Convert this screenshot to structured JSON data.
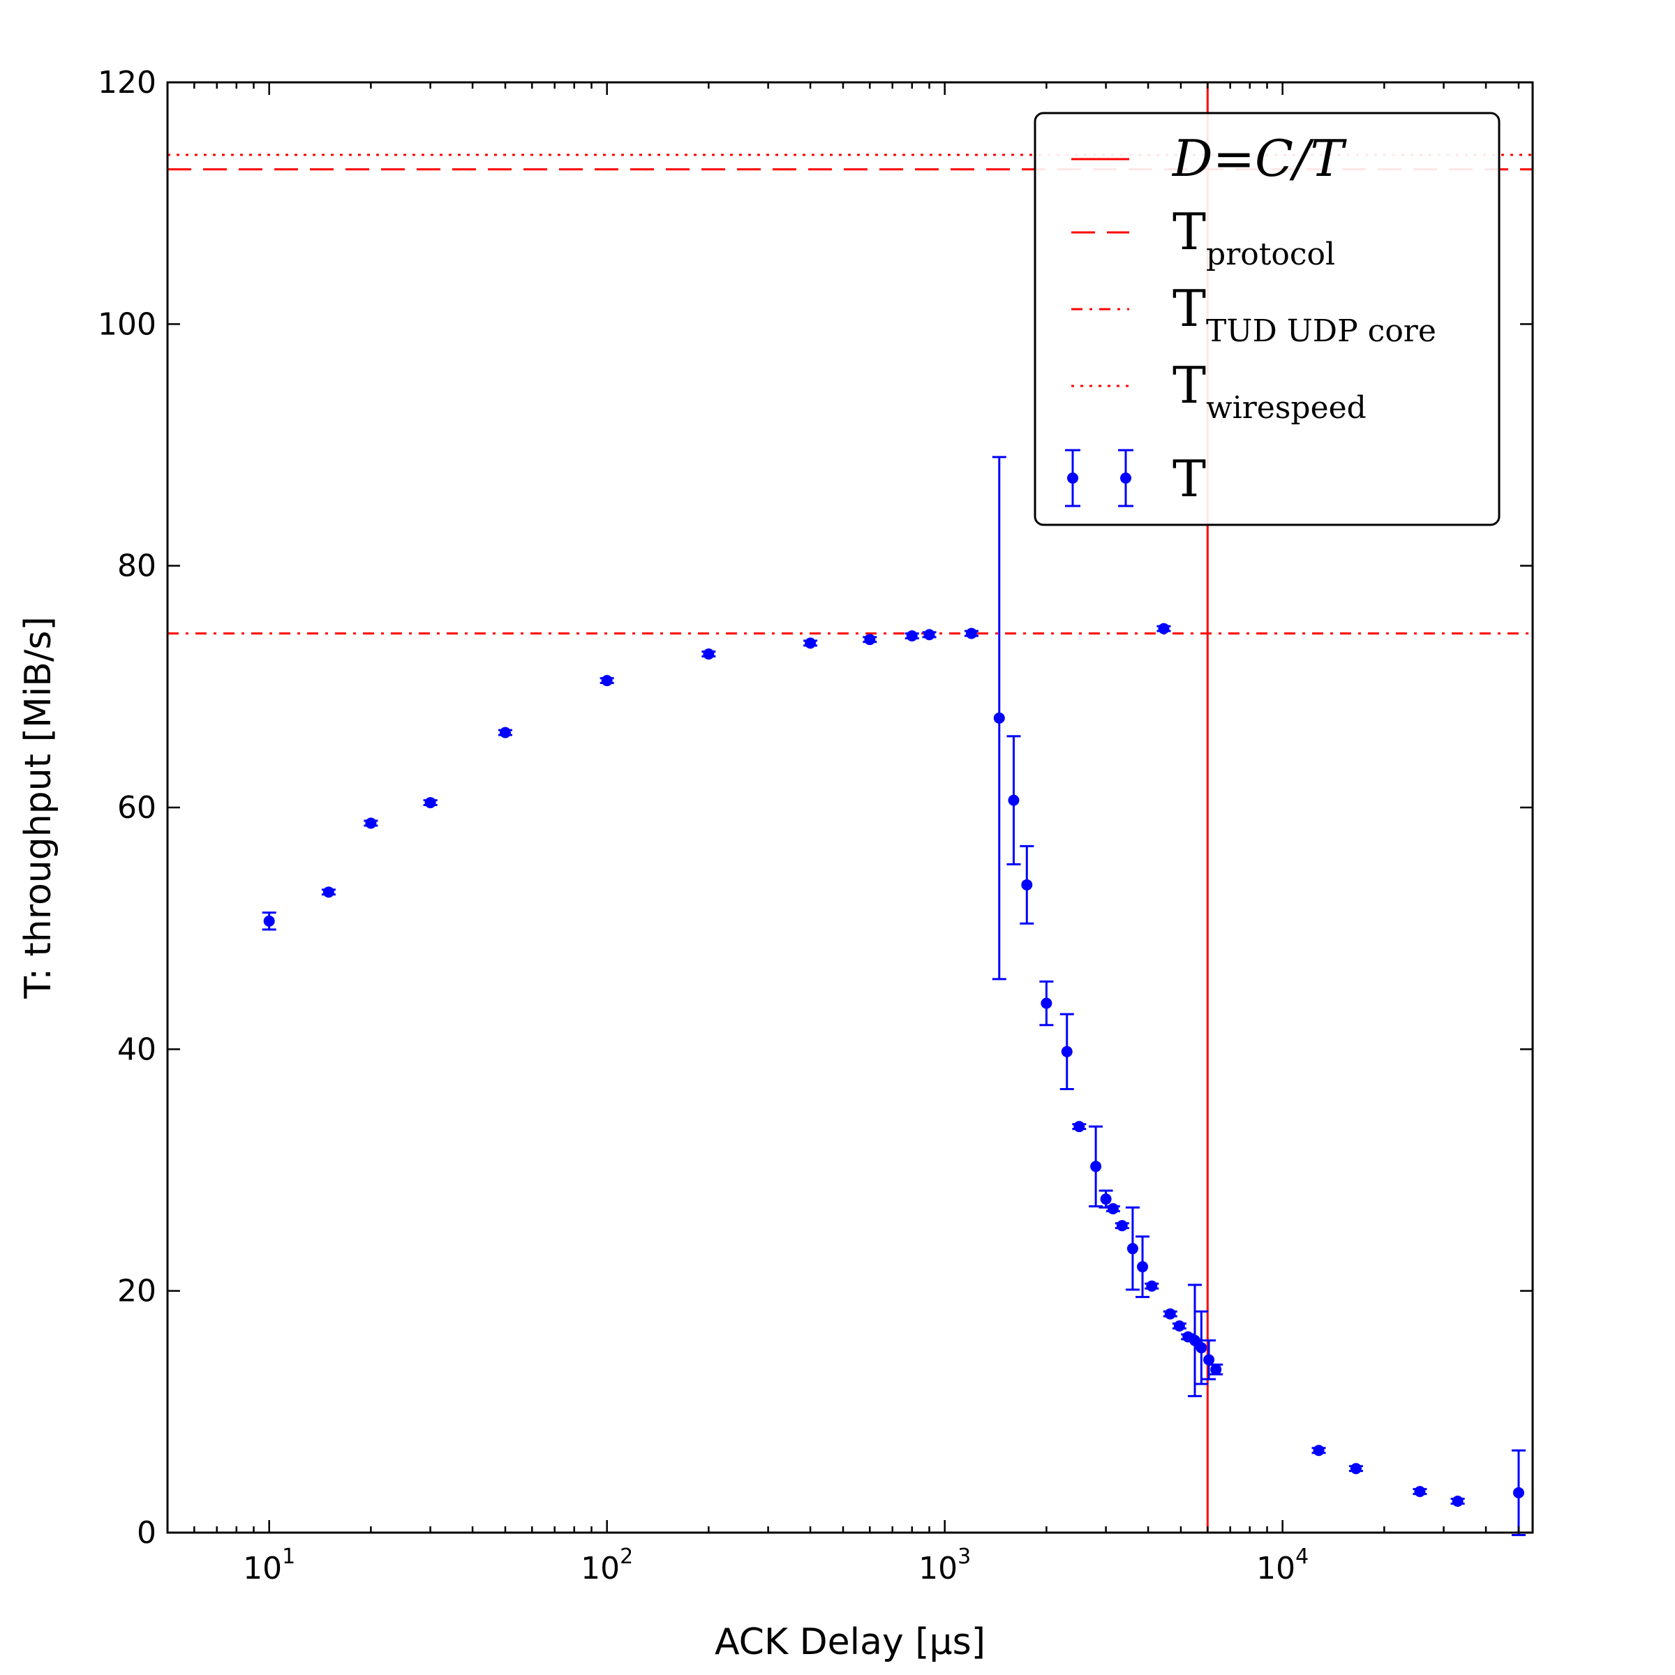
{
  "chart_data": {
    "type": "scatter",
    "title": "",
    "xlabel": "ACK Delay [μs]",
    "ylabel": "T: throughput [MiB/s]",
    "x_scale": "log",
    "xlim": [
      5,
      55000
    ],
    "ylim": [
      0,
      120
    ],
    "x_ticks": [
      {
        "value": 10,
        "base": "10",
        "exp": "1"
      },
      {
        "value": 100,
        "base": "10",
        "exp": "2"
      },
      {
        "value": 1000,
        "base": "10",
        "exp": "3"
      },
      {
        "value": 10000,
        "base": "10",
        "exp": "4"
      }
    ],
    "y_ticks": [
      0,
      20,
      40,
      60,
      80,
      100,
      120
    ],
    "grid": false,
    "legend_position": "top-right",
    "reference_lines": [
      {
        "orientation": "vertical",
        "value": 6000,
        "style": "solid",
        "color": "#ff0000",
        "legend_main": "D=C/T",
        "legend_sub": "",
        "legend_italic": true
      },
      {
        "orientation": "horizontal",
        "value": 112.8,
        "style": "dashed",
        "color": "#ff0000",
        "legend_main": "T",
        "legend_sub": "protocol",
        "legend_italic": false
      },
      {
        "orientation": "horizontal",
        "value": 74.4,
        "style": "dashdot",
        "color": "#ff0000",
        "legend_main": "T",
        "legend_sub": "TUD UDP core",
        "legend_italic": false
      },
      {
        "orientation": "horizontal",
        "value": 114.0,
        "style": "dotted",
        "color": "#ff0000",
        "legend_main": "T",
        "legend_sub": "wirespeed",
        "legend_italic": false
      }
    ],
    "series": [
      {
        "name": "T",
        "color": "#0000ff",
        "points": [
          {
            "x": 10,
            "y": 50.6,
            "err": 0.7
          },
          {
            "x": 15,
            "y": 53.0,
            "err": 0.2
          },
          {
            "x": 20,
            "y": 58.7,
            "err": 0.2
          },
          {
            "x": 30,
            "y": 60.4,
            "err": 0.2
          },
          {
            "x": 50,
            "y": 66.2,
            "err": 0.2
          },
          {
            "x": 100,
            "y": 70.5,
            "err": 0.2
          },
          {
            "x": 200,
            "y": 72.7,
            "err": 0.2
          },
          {
            "x": 400,
            "y": 73.6,
            "err": 0.2
          },
          {
            "x": 600,
            "y": 73.9,
            "err": 0.2
          },
          {
            "x": 800,
            "y": 74.2,
            "err": 0.2
          },
          {
            "x": 900,
            "y": 74.3,
            "err": 0.2
          },
          {
            "x": 1200,
            "y": 74.4,
            "err": 0.2
          },
          {
            "x": 1450,
            "y": 67.4,
            "err": 21.6
          },
          {
            "x": 1600,
            "y": 60.6,
            "err": 5.3
          },
          {
            "x": 1750,
            "y": 53.6,
            "err": 3.2
          },
          {
            "x": 2000,
            "y": 43.8,
            "err": 1.8
          },
          {
            "x": 2300,
            "y": 39.8,
            "err": 3.1
          },
          {
            "x": 2500,
            "y": 33.6,
            "err": 0.2
          },
          {
            "x": 2800,
            "y": 30.3,
            "err": 3.3
          },
          {
            "x": 3000,
            "y": 27.6,
            "err": 0.7
          },
          {
            "x": 3150,
            "y": 26.8,
            "err": 0.2
          },
          {
            "x": 3350,
            "y": 25.4,
            "err": 0.2
          },
          {
            "x": 3600,
            "y": 23.5,
            "err": 3.4
          },
          {
            "x": 3850,
            "y": 22.0,
            "err": 2.5
          },
          {
            "x": 4100,
            "y": 20.4,
            "err": 0.2
          },
          {
            "x": 4450,
            "y": 74.8,
            "err": 0.2
          },
          {
            "x": 4650,
            "y": 18.1,
            "err": 0.2
          },
          {
            "x": 4950,
            "y": 17.1,
            "err": 0.2
          },
          {
            "x": 5250,
            "y": 16.2,
            "err": 0.2
          },
          {
            "x": 5500,
            "y": 15.9,
            "err": 4.6
          },
          {
            "x": 5750,
            "y": 15.3,
            "err": 3.0
          },
          {
            "x": 6050,
            "y": 14.3,
            "err": 1.6
          },
          {
            "x": 6350,
            "y": 13.5,
            "err": 0.4
          },
          {
            "x": 12800,
            "y": 6.8,
            "err": 0.2
          },
          {
            "x": 16500,
            "y": 5.3,
            "err": 0.2
          },
          {
            "x": 25500,
            "y": 3.4,
            "err": 0.2
          },
          {
            "x": 33000,
            "y": 2.6,
            "err": 0.2
          },
          {
            "x": 50000,
            "y": 3.3,
            "err": 3.5
          }
        ]
      }
    ]
  }
}
